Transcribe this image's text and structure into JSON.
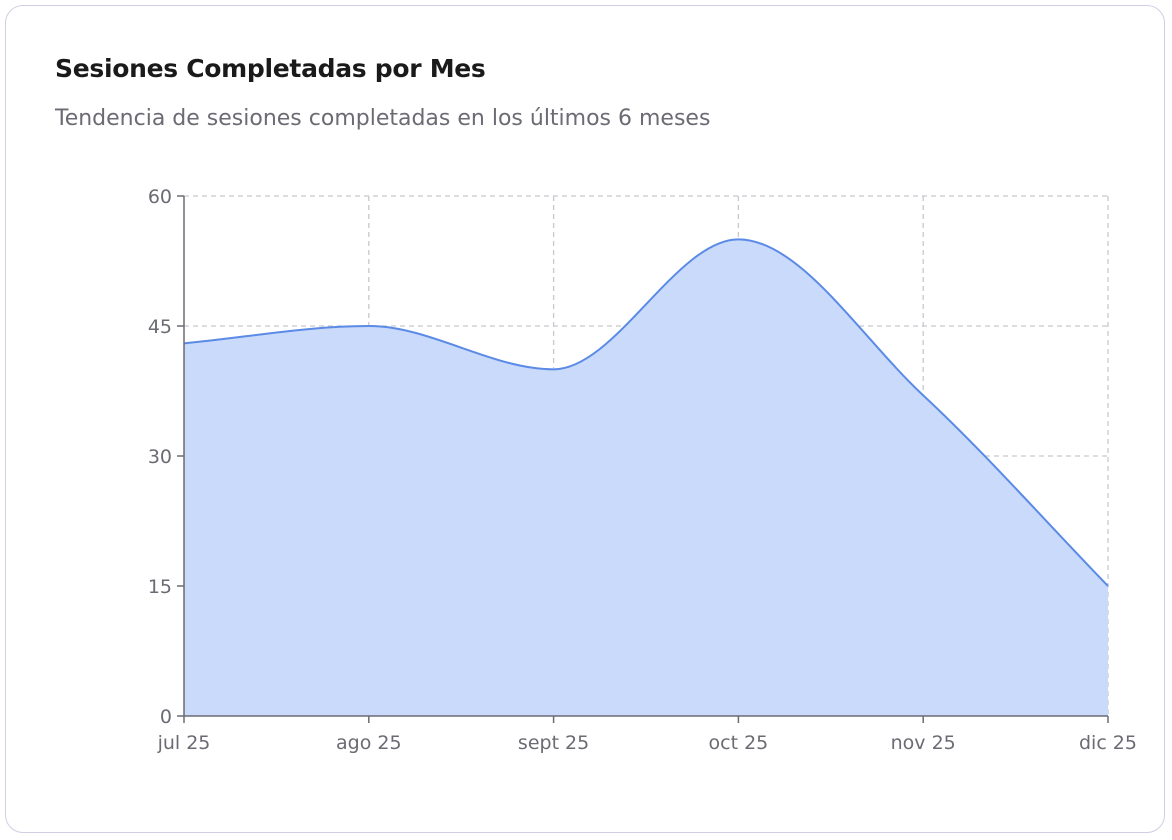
{
  "card": {
    "title": "Sesiones Completadas por Mes",
    "subtitle": "Tendencia de sesiones completadas en los últimos 6 meses"
  },
  "chart_data": {
    "type": "area",
    "title": "Sesiones Completadas por Mes",
    "subtitle": "Tendencia de sesiones completadas en los últimos 6 meses",
    "categories": [
      "jul 25",
      "ago 25",
      "sept 25",
      "oct 25",
      "nov 25",
      "dic 25"
    ],
    "values": [
      43,
      45,
      40,
      55,
      37,
      15
    ],
    "ylim": [
      0,
      60
    ],
    "yticks": [
      0,
      15,
      30,
      45,
      60
    ],
    "xlabel": "",
    "ylabel": "",
    "grid": true,
    "curve": "monotone",
    "colors": {
      "line": "#5b8be6",
      "fill": "#c9dafa",
      "grid": "#c8c8cf",
      "axis": "#6b6b73"
    }
  }
}
